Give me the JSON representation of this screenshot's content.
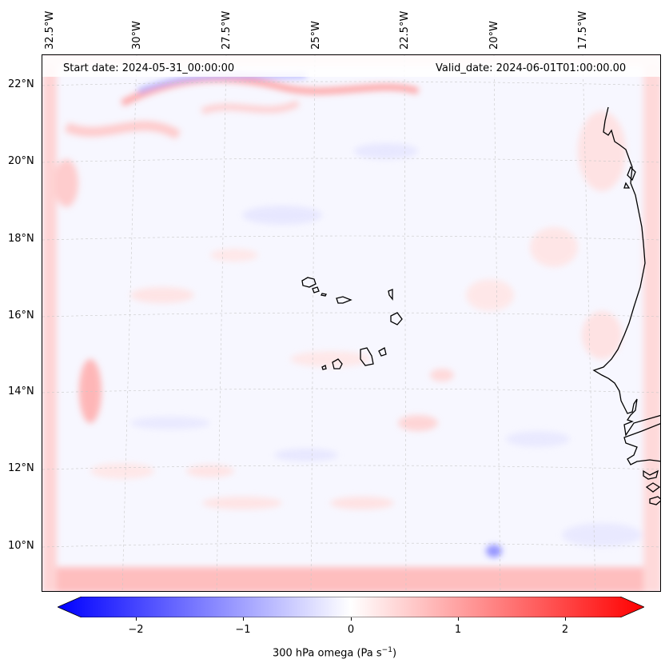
{
  "header": {
    "start_date": "Start date: 2024-05-31_00:00:00",
    "valid_date": "Valid_date: 2024-06-01T01:00:00.00"
  },
  "axes": {
    "lon_ticks": [
      "32.5°W",
      "30°W",
      "27.5°W",
      "25°W",
      "22.5°W",
      "20°W",
      "17.5°W"
    ],
    "lat_ticks": [
      "22°N",
      "20°N",
      "18°N",
      "16°N",
      "14°N",
      "12°N",
      "10°N"
    ]
  },
  "colorbar": {
    "label_main": "300 hPa omega (Pa s",
    "label_exp": "−1",
    "label_close": ")",
    "ticks": [
      "−2",
      "−1",
      "0",
      "1",
      "2"
    ],
    "tick_values": [
      -2,
      -1,
      0,
      1,
      2
    ],
    "vmin": -2.75,
    "vmax": 2.75,
    "cmap": "bwr",
    "extend": "both"
  },
  "colors": {
    "negative": "#0000ff",
    "zero": "#ffffff",
    "positive": "#ff0000",
    "coast": "#000000",
    "grid": "#bbbbbb"
  },
  "map_data": {
    "field": "300 hPa omega",
    "units": "Pa s-1",
    "extent_lon": [
      -33,
      -15.5
    ],
    "extent_lat": [
      9,
      22.5
    ]
  }
}
